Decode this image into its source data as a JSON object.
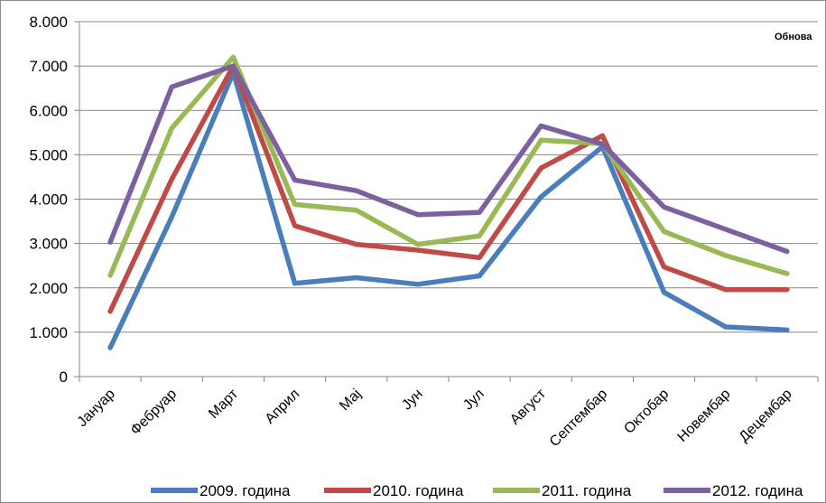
{
  "chart_data": {
    "type": "line",
    "title": "",
    "xlabel": "",
    "ylabel": "",
    "annotation": "Обнова",
    "categories": [
      "Јануар",
      "Фебруар",
      "Март",
      "Април",
      "Мај",
      "Јун",
      "Јул",
      "Август",
      "Септембар",
      "Октобар",
      "Новембар",
      "Децембар"
    ],
    "yticks": [
      "0",
      "1.000",
      "2.000",
      "3.000",
      "4.000",
      "5.000",
      "6.000",
      "7.000",
      "8.000"
    ],
    "ylim": [
      0,
      8000
    ],
    "grid": true,
    "legend_position": "bottom",
    "series": [
      {
        "name": "2009. година",
        "color": "#4a7ebb",
        "values": [
          650,
          3600,
          6850,
          2100,
          2230,
          2080,
          2270,
          4050,
          5180,
          1900,
          1120,
          1050
        ]
      },
      {
        "name": "2010. година",
        "color": "#be4b48",
        "values": [
          1470,
          4450,
          7000,
          3400,
          2980,
          2850,
          2680,
          4700,
          5430,
          2470,
          1960,
          1960
        ]
      },
      {
        "name": "2011. година",
        "color": "#98b954",
        "values": [
          2280,
          5600,
          7200,
          3880,
          3750,
          2980,
          3170,
          5330,
          5250,
          3270,
          2730,
          2320
        ]
      },
      {
        "name": "2012. година",
        "color": "#7d60a0",
        "values": [
          3030,
          6530,
          7000,
          4430,
          4190,
          3650,
          3700,
          5650,
          5240,
          3820,
          3320,
          2820
        ]
      }
    ]
  }
}
